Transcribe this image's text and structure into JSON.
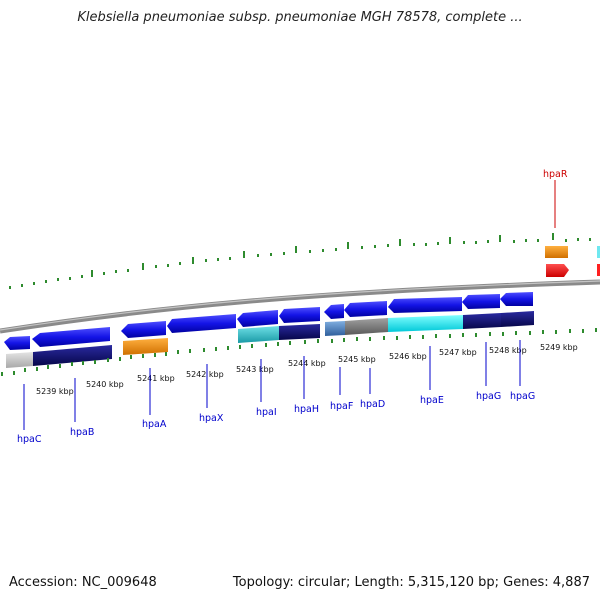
{
  "title": "Klebsiella pneumoniae subsp. pneumoniae MGH 78578, complete ...",
  "footer": {
    "accession": "Accession: NC_009648",
    "summary": "Topology: circular; Length: 5,315,120 bp; Genes: 4,887"
  },
  "scale": {
    "unit": "kbp",
    "ticks": [
      "5239 kbp",
      "5240 kbp",
      "5241 kbp",
      "5242 kbp",
      "5243 kbp",
      "5244 kbp",
      "5245 kbp",
      "5246 kbp",
      "5247 kbp",
      "5248 kbp",
      "5249 kbp"
    ]
  },
  "genes": [
    {
      "name": "hpaC",
      "color": "#0000cc"
    },
    {
      "name": "hpaB",
      "color": "#0000cc"
    },
    {
      "name": "hpaA",
      "color": "#0000cc"
    },
    {
      "name": "hpaX",
      "color": "#0000cc"
    },
    {
      "name": "hpaI",
      "color": "#0000cc"
    },
    {
      "name": "hpaH",
      "color": "#0000cc"
    },
    {
      "name": "hpaF",
      "color": "#0000cc"
    },
    {
      "name": "hpaD",
      "color": "#0000cc"
    },
    {
      "name": "hpaE",
      "color": "#0000cc"
    },
    {
      "name": "hpaG",
      "color": "#0000cc"
    },
    {
      "name": "hpaG",
      "color": "#0000cc"
    },
    {
      "name": "hpaR",
      "color": "#cc0000"
    }
  ],
  "colors": {
    "backbone": "#8a8a8a",
    "tick": "#2e8b2e",
    "cds": "#1414e6",
    "cds_dark": "#0a0a78",
    "cyan": "#00e6e6",
    "teal": "#33c2cc",
    "grey": "#7a7a7a",
    "light_grey": "#c8c8c8",
    "steel": "#4f86c6",
    "orange": "#f28c00",
    "red": "#ff0000"
  }
}
